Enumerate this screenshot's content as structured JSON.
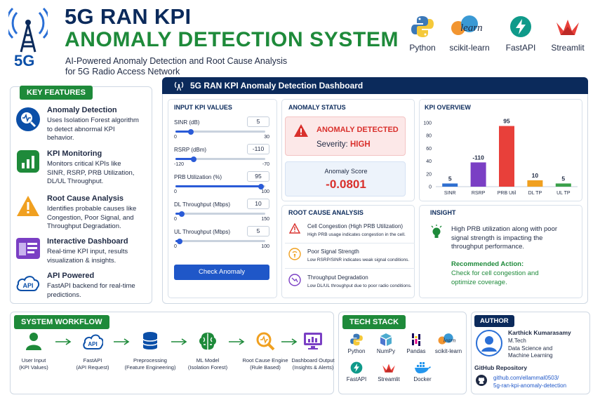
{
  "header": {
    "badge": "5G",
    "title_line1": "5G RAN KPI",
    "title_line2": "ANOMALY DETECTION SYSTEM",
    "subtitle_line1": "AI-Powered Anomaly Detection and Root Cause Analysis",
    "subtitle_line2": "for 5G Radio Access Network",
    "logos": [
      {
        "label": "Python",
        "icon": "python-logo-icon"
      },
      {
        "label": "scikit-learn",
        "icon": "scikit-learn-logo-icon",
        "mark": "learn"
      },
      {
        "label": "FastAPI",
        "icon": "fastapi-logo-icon"
      },
      {
        "label": "Streamlit",
        "icon": "streamlit-logo-icon"
      }
    ]
  },
  "features": {
    "title": "KEY FEATURES",
    "items": [
      {
        "title": "Anomaly Detection",
        "desc": [
          "Uses Isolation Forest algorithm",
          "to detect abnormal KPI",
          "behavior."
        ],
        "color": "#0b4fa8",
        "icon": "magnifier-pulse-icon"
      },
      {
        "title": "KPI Monitoring",
        "desc": [
          "Monitors critical KPIs like",
          "SINR, RSRP, PRB Utilization,",
          "DL/UL Throughput."
        ],
        "color": "#1e8a3a",
        "icon": "bar-chart-icon"
      },
      {
        "title": "Root Cause Analysis",
        "desc": [
          "Identifies probable causes like",
          "Congestion, Poor Signal, and",
          "Throughput Degradation."
        ],
        "color": "#f0a020",
        "icon": "warning-icon"
      },
      {
        "title": "Interactive Dashboard",
        "desc": [
          "Real-time KPI input, results",
          "visualization & insights."
        ],
        "color": "#7a3fc4",
        "icon": "dashboard-icon"
      },
      {
        "title": "API Powered",
        "desc": [
          "FastAPI backend for real-time",
          "predictions."
        ],
        "color": "#0b4fa8",
        "icon": "api-cloud-icon"
      }
    ]
  },
  "dashboard": {
    "title": "5G RAN KPI Anomaly Detection Dashboard",
    "inputs": {
      "title": "INPUT KPI VALUES",
      "sliders": [
        {
          "label": "SINR (dB)",
          "value": "5",
          "min": "0",
          "max": "30",
          "fraction": 0.17
        },
        {
          "label": "RSRP (dBm)",
          "value": "-110",
          "min": "-120",
          "max": "-70",
          "fraction": 0.2
        },
        {
          "label": "PRB Utilization (%)",
          "value": "95",
          "min": "0",
          "max": "100",
          "fraction": 0.95
        },
        {
          "label": "DL Throughput (Mbps)",
          "value": "10",
          "min": "0",
          "max": "150",
          "fraction": 0.07
        },
        {
          "label": "UL Throughput (Mbps)",
          "value": "5",
          "min": "0",
          "max": "100",
          "fraction": 0.05
        }
      ],
      "button": "Check Anomaly"
    },
    "status": {
      "title": "ANOMALY STATUS",
      "detected": "ANOMALY DETECTED",
      "severity_label": "Severity:",
      "severity_value": "HIGH",
      "score_label": "Anomaly Score",
      "score_value": "-0.0801"
    },
    "overview": {
      "title": "KPI OVERVIEW"
    },
    "root_cause": {
      "title": "ROOT CAUSE ANALYSIS",
      "items": [
        {
          "title": "Cell Congestion (High PRB Utilization)",
          "desc": "High PRB usage indicates congestion in the cell.",
          "icon": "warning-triangle-icon",
          "color": "#d9302c"
        },
        {
          "title": "Poor Signal Strength",
          "desc": "Low RSRP/SINR indicates weak signal conditions.",
          "icon": "signal-icon",
          "color": "#f0a020"
        },
        {
          "title": "Throughput Degradation",
          "desc": "Low DL/UL throughput due to poor radio conditions.",
          "icon": "degradation-icon",
          "color": "#7a3fc4"
        }
      ]
    },
    "insight": {
      "title": "INSIGHT",
      "text": [
        "High PRB utilization along with poor",
        "signal strength is impacting the",
        "throughput performance."
      ],
      "action_label": "Recommended Action:",
      "action_text": [
        "Check for cell congestion and",
        "optimize coverage."
      ]
    }
  },
  "chart_data": {
    "type": "bar",
    "categories": [
      "SINR",
      "RSRP",
      "PRB Util",
      "DL TP",
      "UL TP"
    ],
    "values": [
      5,
      -110,
      95,
      10,
      5
    ],
    "value_labels": [
      "5",
      "-110",
      "95",
      "10",
      "5"
    ],
    "display_heights": [
      5,
      38,
      95,
      10,
      5
    ],
    "colors": [
      "#2f6fd0",
      "#7a3fc4",
      "#e8403a",
      "#f0a020",
      "#3aa04a"
    ],
    "yticks": [
      "0",
      "20",
      "40",
      "60",
      "80",
      "100"
    ],
    "ylim": [
      0,
      100
    ],
    "grid": false
  },
  "workflow": {
    "title": "SYSTEM WORKFLOW",
    "steps": [
      {
        "l1": "User Input",
        "l2": "(KPI Values)",
        "icon": "user-icon",
        "color": "#1e8a3a"
      },
      {
        "l1": "FastAPI",
        "l2": "(API Request)",
        "icon": "api-cloud-icon",
        "color": "#0b4fa8"
      },
      {
        "l1": "Preprocessing",
        "l2": "(Feature Engineering)",
        "icon": "database-icon",
        "color": "#0b4fa8"
      },
      {
        "l1": "ML Model",
        "l2": "(Isolation Forest)",
        "icon": "brain-icon",
        "color": "#1e8a3a"
      },
      {
        "l1": "Root Cause Engine",
        "l2": "(Rule Based)",
        "icon": "magnifier-icon",
        "color": "#f0a020"
      },
      {
        "l1": "Dashboard Output",
        "l2": "(Insights & Alerts)",
        "icon": "monitor-chart-icon",
        "color": "#7a3fc4"
      }
    ]
  },
  "tech_stack": {
    "title": "TECH STACK",
    "items": [
      {
        "label": "Python",
        "icon": "python-logo-icon"
      },
      {
        "label": "NumPy",
        "icon": "numpy-logo-icon"
      },
      {
        "label": "Pandas",
        "icon": "pandas-logo-icon"
      },
      {
        "label": "scikit-learn",
        "icon": "scikit-learn-logo-icon",
        "mark": "learn"
      },
      {
        "label": "FastAPI",
        "icon": "fastapi-logo-icon"
      },
      {
        "label": "Streamlit",
        "icon": "streamlit-logo-icon"
      },
      {
        "label": "Docker",
        "icon": "docker-logo-icon"
      }
    ]
  },
  "author": {
    "title": "AUTHOR",
    "name": "Karthick Kumarasamy",
    "degree": "M.Tech",
    "field1": "Data Science and",
    "field2": "Machine Learning",
    "repo_title": "GitHub Repository",
    "repo_line1": "github.com/ellammal0503/",
    "repo_line2": "5g-ran-kpi-anomaly-detection"
  }
}
